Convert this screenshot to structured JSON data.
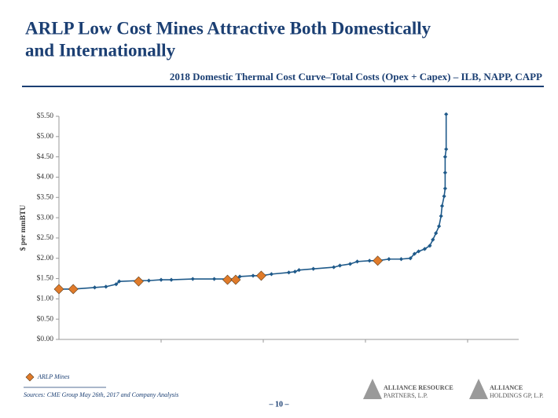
{
  "slide": {
    "title_line1": "ARLP Low Cost Mines Attractive Both Domestically",
    "title_line2": "and Internationally",
    "source": "Sources: CME Group May 26th, 2017 and Company Analysis",
    "page_number": "– 10 –",
    "logo1_line1": "ALLIANCE RESOURCE",
    "logo1_line2": "PARTNERS, L.P.",
    "logo2_line1": "ALLIANCE",
    "logo2_line2": "HOLDINGS GP, L.P."
  },
  "chart_data": {
    "type": "line",
    "title": "2018 Domestic Thermal Cost Curve–Total Costs (Opex + Capex) – ILB, NAPP, CAPP",
    "y_label": "$ per mmBTU",
    "xlim": [
      0,
      4.5
    ],
    "xticks": [
      1,
      2,
      3,
      4
    ],
    "ylim": [
      0,
      5.5
    ],
    "yticks": [
      {
        "value": 0,
        "label": "$0.00"
      },
      {
        "value": 0.5,
        "label": "$0.50"
      },
      {
        "value": 1,
        "label": "$1.00"
      },
      {
        "value": 1.5,
        "label": "$1.50"
      },
      {
        "value": 2,
        "label": "$2.00"
      },
      {
        "value": 2.5,
        "label": "$2.50"
      },
      {
        "value": 3,
        "label": "$3.00"
      },
      {
        "value": 3.5,
        "label": "$3.50"
      },
      {
        "value": 4,
        "label": "$4.00"
      },
      {
        "value": 4.5,
        "label": "$4.50"
      },
      {
        "value": 5,
        "label": "$5.00"
      },
      {
        "value": 5.5,
        "label": "$5.50"
      }
    ],
    "legend": "bottom-left",
    "series": [
      {
        "color": "#1f5a8a",
        "marker": "small-diamond",
        "x": [
          0,
          0.14,
          0.35,
          0.46,
          0.56,
          0.59,
          0.78,
          0.88,
          1.0,
          1.1,
          1.31,
          1.52,
          1.65,
          1.73,
          1.77,
          1.9,
          1.98,
          2.08,
          2.25,
          2.31,
          2.35,
          2.49,
          2.69,
          2.75,
          2.85,
          2.92,
          3.04,
          3.12,
          3.23,
          3.35,
          3.44,
          3.48,
          3.52,
          3.58,
          3.63,
          3.66,
          3.69,
          3.72,
          3.74,
          3.75,
          3.77,
          3.78,
          3.78,
          3.78,
          3.79,
          3.79
        ],
        "values": [
          1.24,
          1.24,
          1.28,
          1.3,
          1.36,
          1.43,
          1.45,
          1.45,
          1.47,
          1.47,
          1.49,
          1.49,
          1.49,
          1.49,
          1.55,
          1.57,
          1.57,
          1.61,
          1.65,
          1.67,
          1.71,
          1.74,
          1.78,
          1.82,
          1.86,
          1.92,
          1.94,
          1.94,
          1.98,
          1.98,
          2.0,
          2.11,
          2.17,
          2.23,
          2.31,
          2.46,
          2.62,
          2.79,
          3.04,
          3.29,
          3.53,
          3.72,
          4.11,
          4.5,
          4.69,
          5.55
        ]
      },
      {
        "name": "ARLP Mines",
        "color": "#e07b2a",
        "marker": "diamond",
        "line": false,
        "x": [
          0,
          0.14,
          0.78,
          1.65,
          1.73,
          1.98,
          3.12
        ],
        "values": [
          1.24,
          1.24,
          1.43,
          1.47,
          1.47,
          1.57,
          1.94
        ]
      }
    ]
  }
}
